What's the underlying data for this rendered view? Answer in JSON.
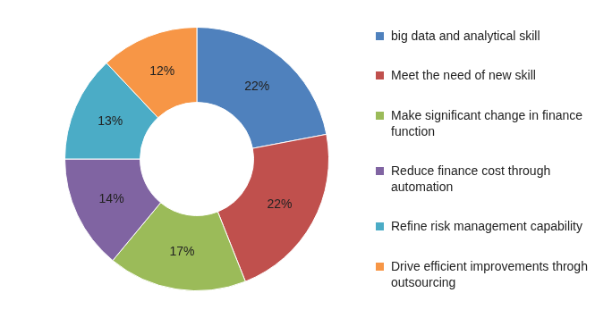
{
  "chart_data": {
    "type": "doughnut",
    "categories": [
      "big data and analytical skill",
      "Meet the need of new skill",
      "Make significant change in finance function",
      "Reduce finance cost through automation",
      "Refine risk management capability",
      "Drive efficient improvements throgh outsourcing"
    ],
    "values": [
      22,
      22,
      17,
      14,
      13,
      12
    ],
    "value_labels": [
      "22%",
      "22%",
      "17%",
      "14%",
      "13%",
      "12%"
    ],
    "colors": [
      "#4f81bd",
      "#c0504d",
      "#9bbb59",
      "#8064a2",
      "#4bacc6",
      "#f79646"
    ],
    "data_labels": true,
    "legend": "right"
  }
}
